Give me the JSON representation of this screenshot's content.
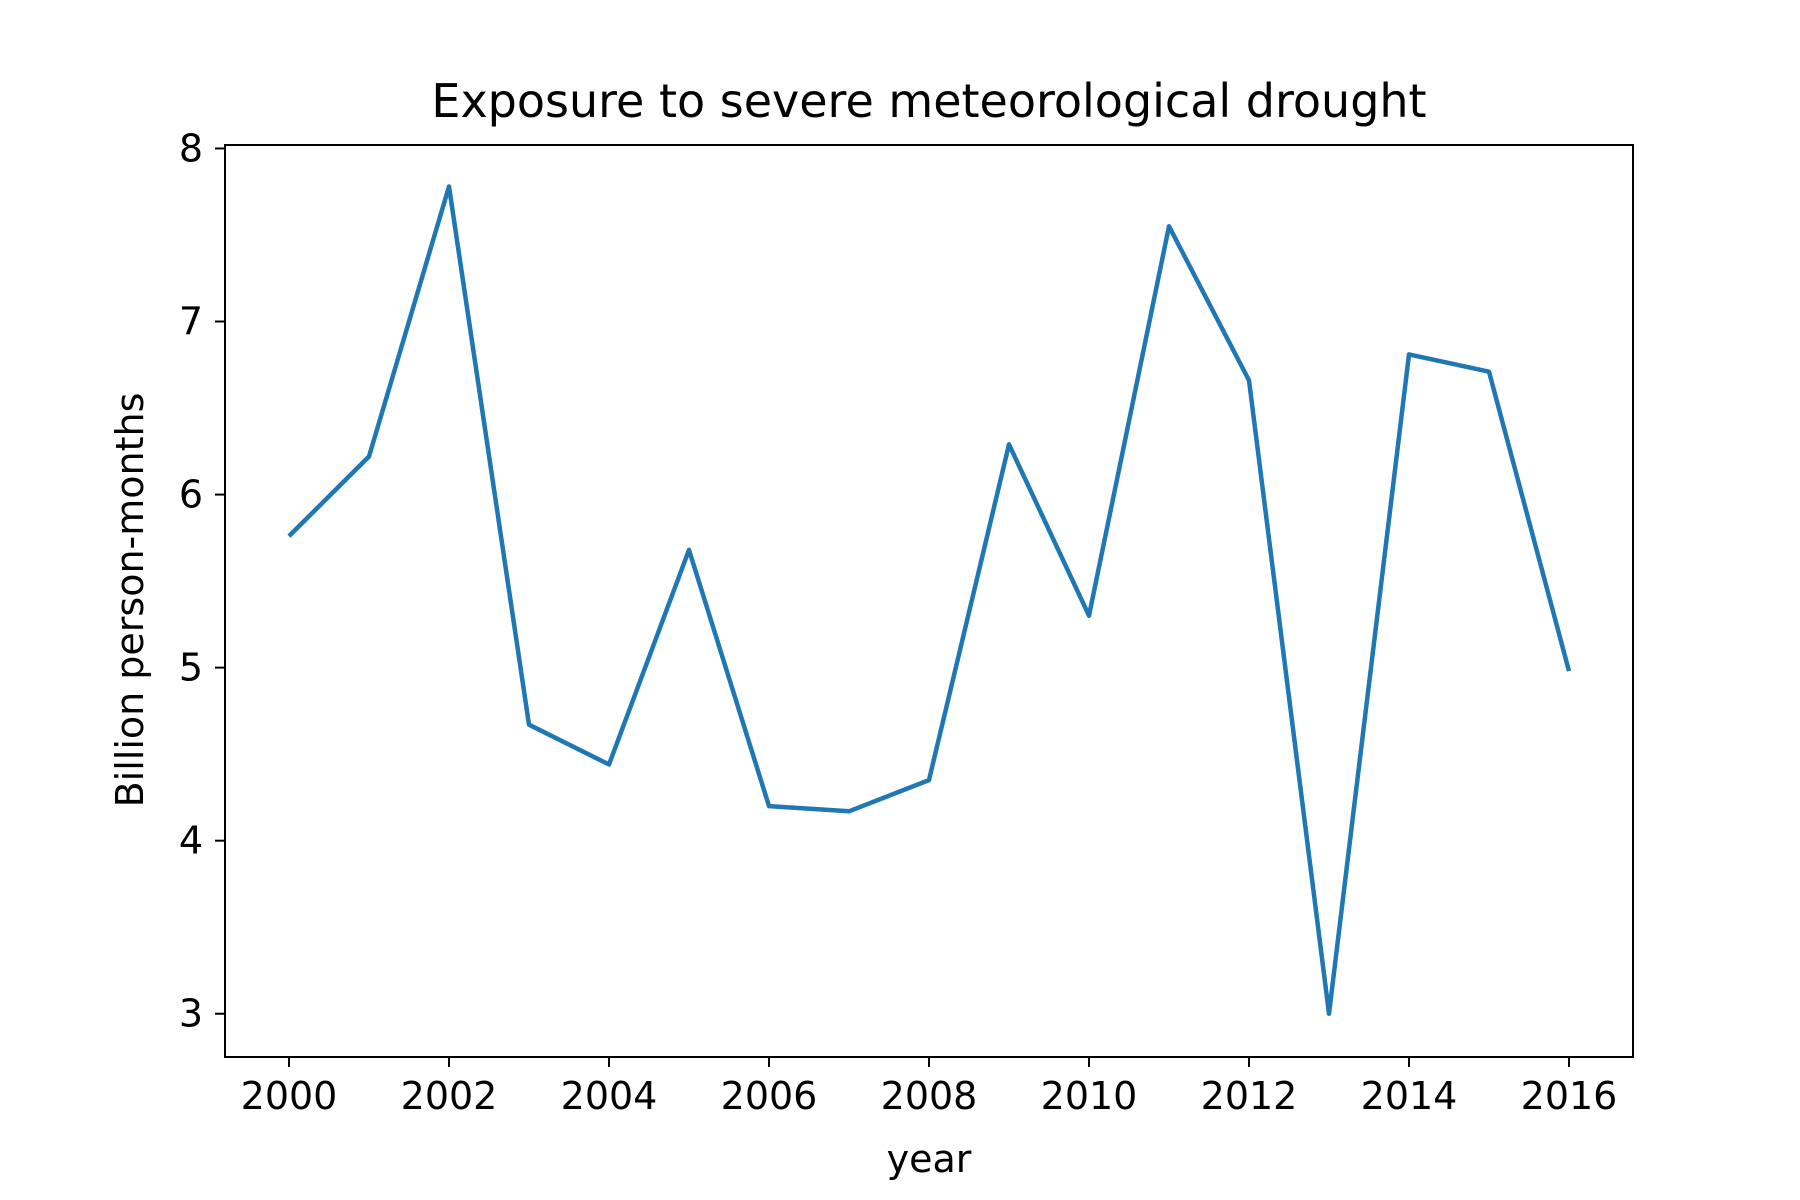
{
  "chart_data": {
    "type": "line",
    "title": "Exposure to severe meteorological drought",
    "xlabel": "year",
    "ylabel": "Billion person-months",
    "xlim": [
      1999.2,
      2016.8
    ],
    "ylim": [
      2.75,
      8.02
    ],
    "xticks": [
      2000,
      2002,
      2004,
      2006,
      2008,
      2010,
      2012,
      2014,
      2016
    ],
    "yticks": [
      3,
      4,
      5,
      6,
      7,
      8
    ],
    "grid": false,
    "series": [
      {
        "color": "#1f77b4",
        "x": [
          2000,
          2001,
          2002,
          2003,
          2004,
          2005,
          2006,
          2007,
          2008,
          2009,
          2010,
          2011,
          2012,
          2013,
          2014,
          2015,
          2016
        ],
        "y": [
          5.76,
          6.22,
          7.78,
          4.67,
          4.44,
          5.68,
          4.2,
          4.17,
          4.35,
          6.29,
          5.3,
          7.55,
          6.66,
          3.0,
          6.81,
          6.71,
          4.98
        ]
      }
    ]
  }
}
